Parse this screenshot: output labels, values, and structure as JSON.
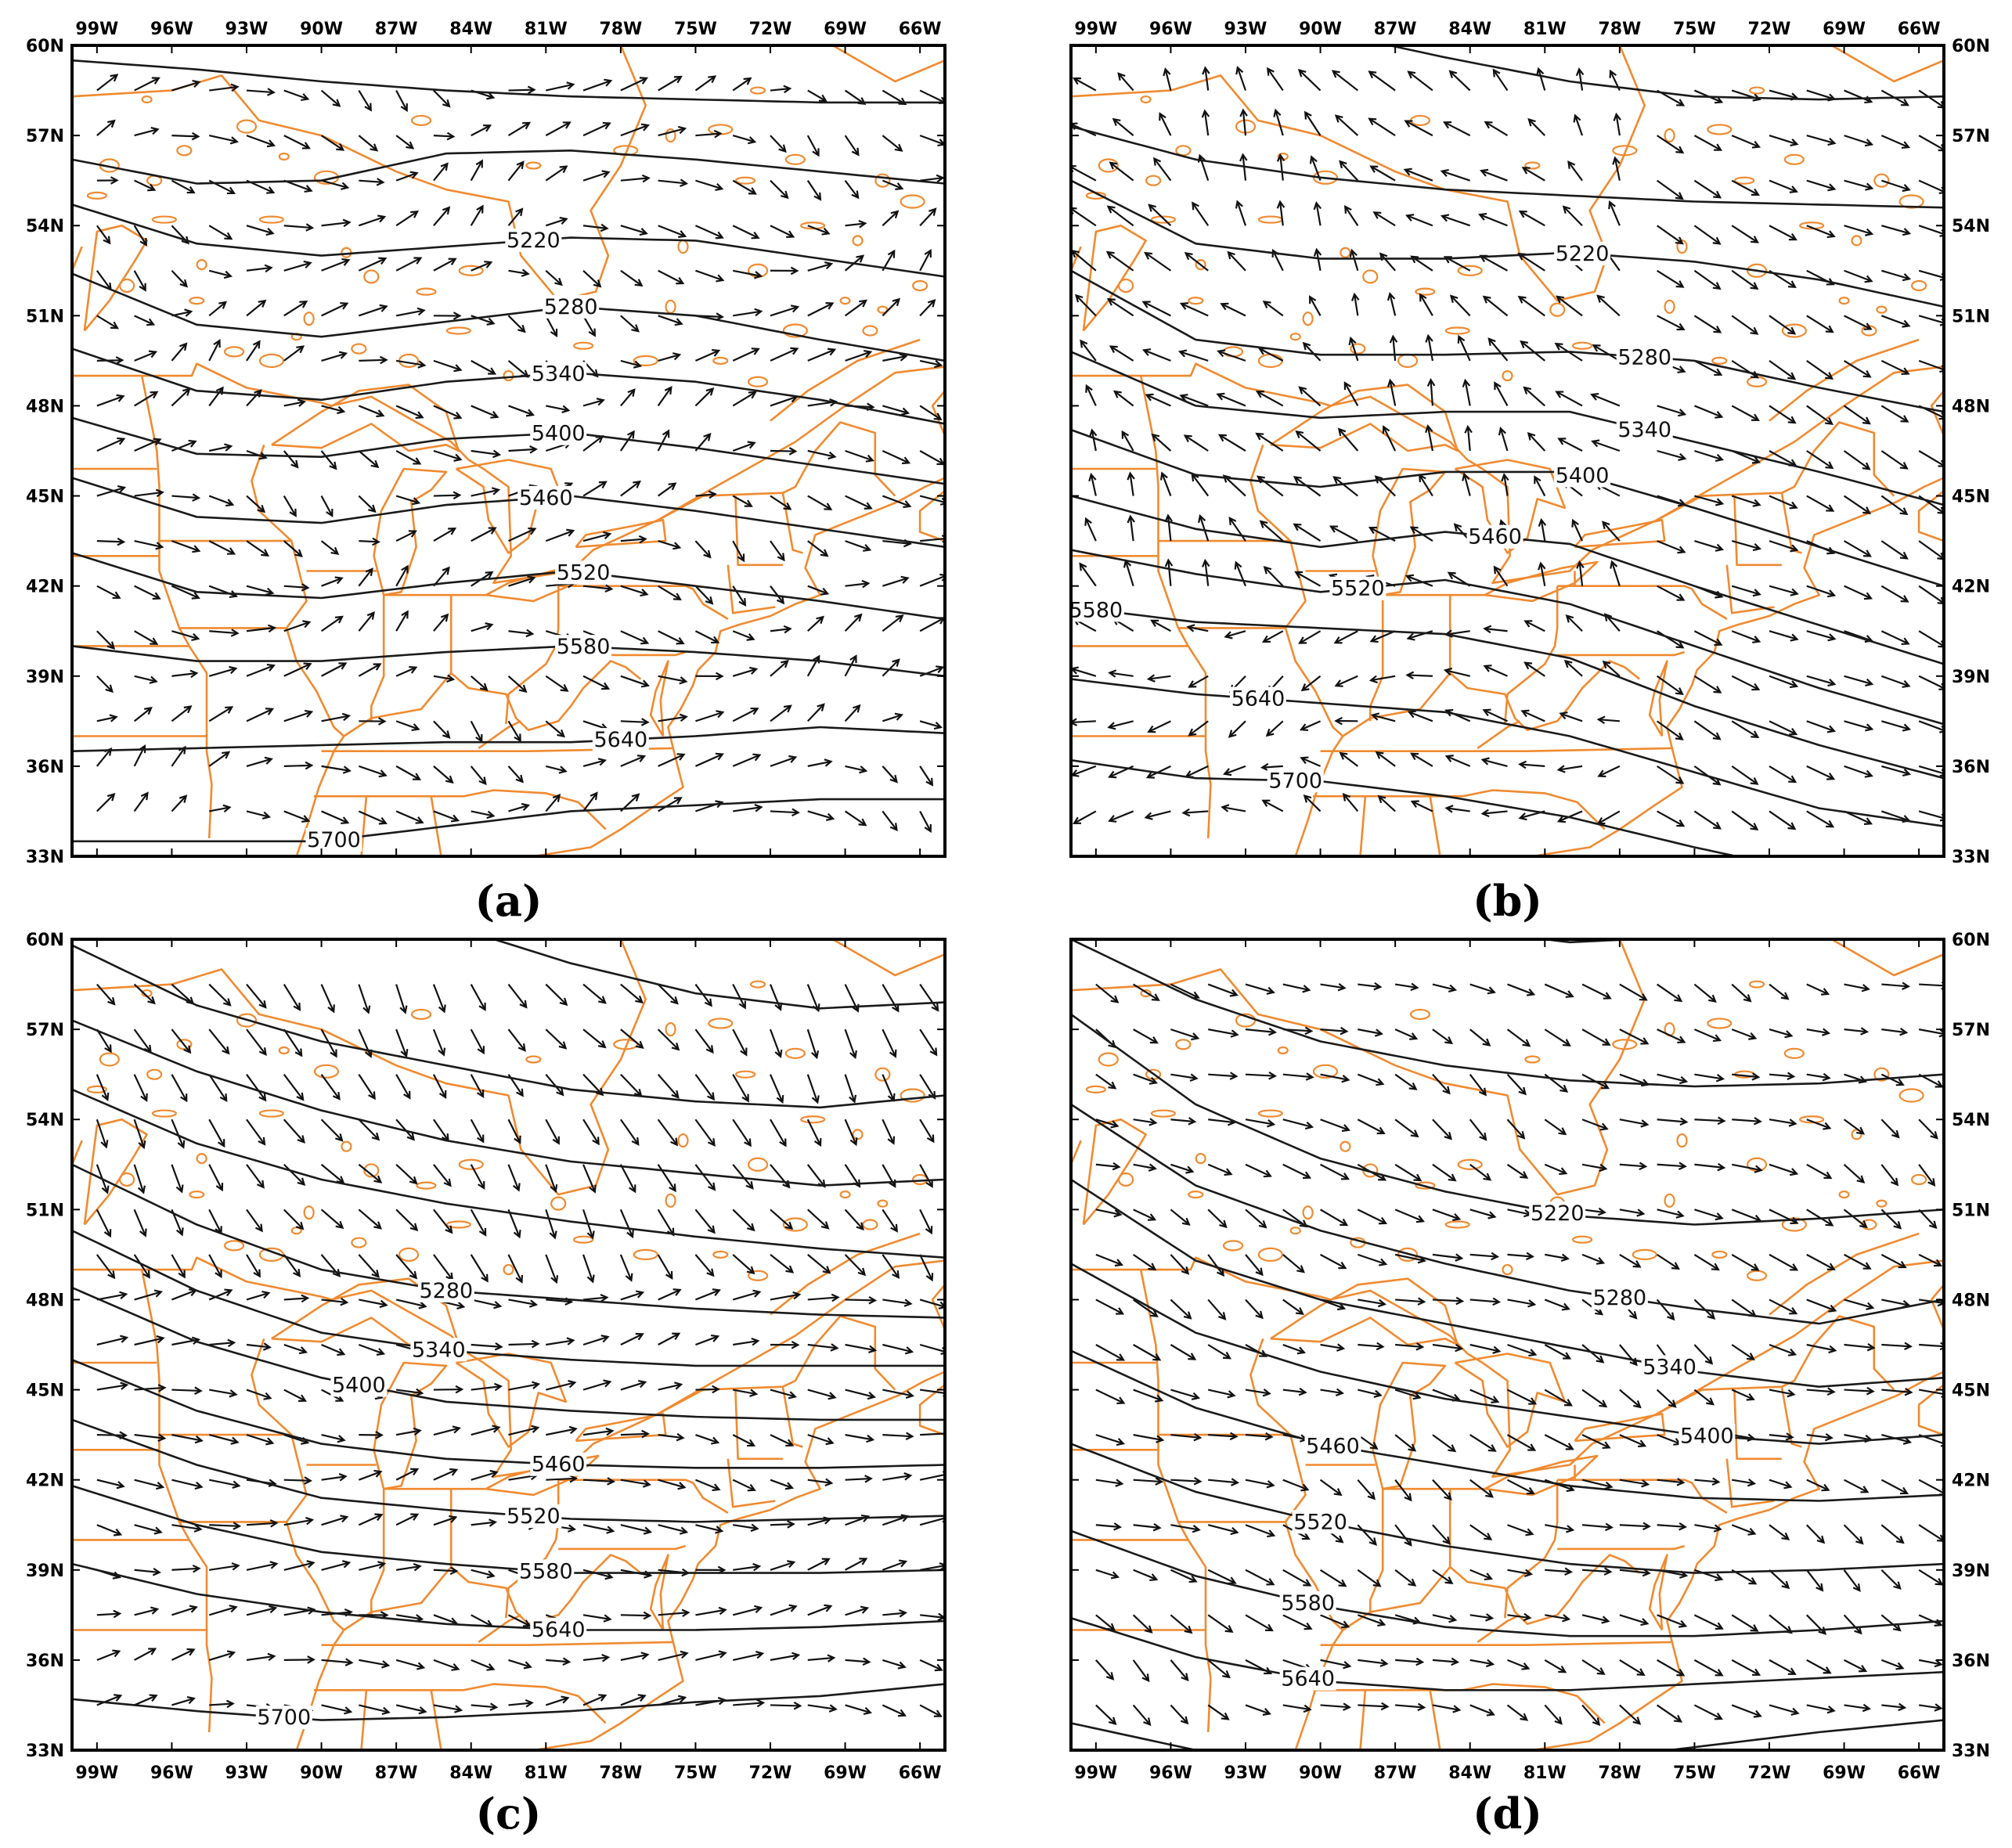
{
  "figure": {
    "panels": [
      {
        "id": "a",
        "label": "(a)",
        "lon_labels": "top",
        "lat_labels": "left",
        "contour_labels": [
          "5220",
          "5280",
          "5340",
          "5400",
          "5460",
          "5520",
          "5580",
          "5640",
          "5700"
        ]
      },
      {
        "id": "b",
        "label": "(b)",
        "lon_labels": "top",
        "lat_labels": "right",
        "contour_labels": [
          "5220",
          "5280",
          "5340",
          "5400",
          "5460",
          "5520",
          "5580",
          "5640",
          "5700"
        ]
      },
      {
        "id": "c",
        "label": "(c)",
        "lon_labels": "bottom",
        "lat_labels": "left",
        "contour_labels": [
          "5280",
          "5340",
          "5400",
          "5460",
          "5520",
          "5580",
          "5640",
          "5700"
        ]
      },
      {
        "id": "d",
        "label": "(d)",
        "lon_labels": "bottom",
        "lat_labels": "right",
        "contour_labels": [
          "5220",
          "5280",
          "5340",
          "5400",
          "5460",
          "5520",
          "5580",
          "5640"
        ]
      }
    ],
    "lon_ticks": [
      "99W",
      "96W",
      "93W",
      "90W",
      "87W",
      "84W",
      "81W",
      "78W",
      "75W",
      "72W",
      "69W",
      "66W"
    ],
    "lat_ticks": [
      "60N",
      "57N",
      "54N",
      "51N",
      "48N",
      "45N",
      "42N",
      "39N",
      "36N",
      "33N"
    ],
    "extent": {
      "lon_min": -100,
      "lon_max": -65,
      "lat_min": 33,
      "lat_max": 60
    },
    "colors": {
      "boundaries": "#f08a30",
      "contours": "#1a1a1a",
      "vectors": "#111111",
      "frame": "#000000"
    }
  }
}
